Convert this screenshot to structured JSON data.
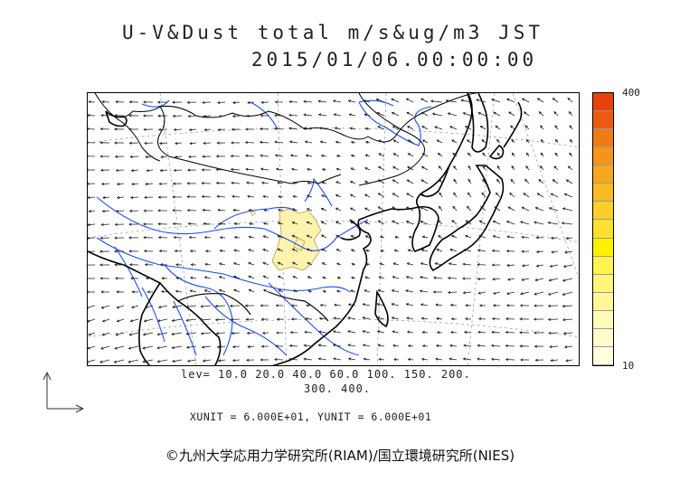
{
  "header": {
    "title_line1": "U-V&Dust total m/s&ug/m3 JST",
    "title_line2": "2015/01/06.00:00:00"
  },
  "colorbar": {
    "max_label": "400",
    "min_label": "10",
    "colors": [
      "#e8420a",
      "#ec5a10",
      "#f07a14",
      "#f49418",
      "#f6a81c",
      "#f8bc20",
      "#fad028",
      "#fce030",
      "#fff000",
      "#fff44c",
      "#fff67a",
      "#fff89a",
      "#fffab6",
      "#fffccc",
      "#fffee0"
    ]
  },
  "legend": {
    "levels_line1": "lev= 10.0 20.0 40.0 60.0 100. 150. 200.",
    "levels_line2": "300. 400."
  },
  "units": {
    "text": "XUNIT = 6.000E+01, YUNIT = 6.000E+01"
  },
  "footer": {
    "copyright": "©九州大学応用力学研究所(RIAM)/国立環境研究所(NIES)"
  },
  "map": {
    "coast_color": "#000000",
    "river_color": "#1a4cff",
    "dust_color": "#fff3b0",
    "vector_color": "#222222"
  }
}
